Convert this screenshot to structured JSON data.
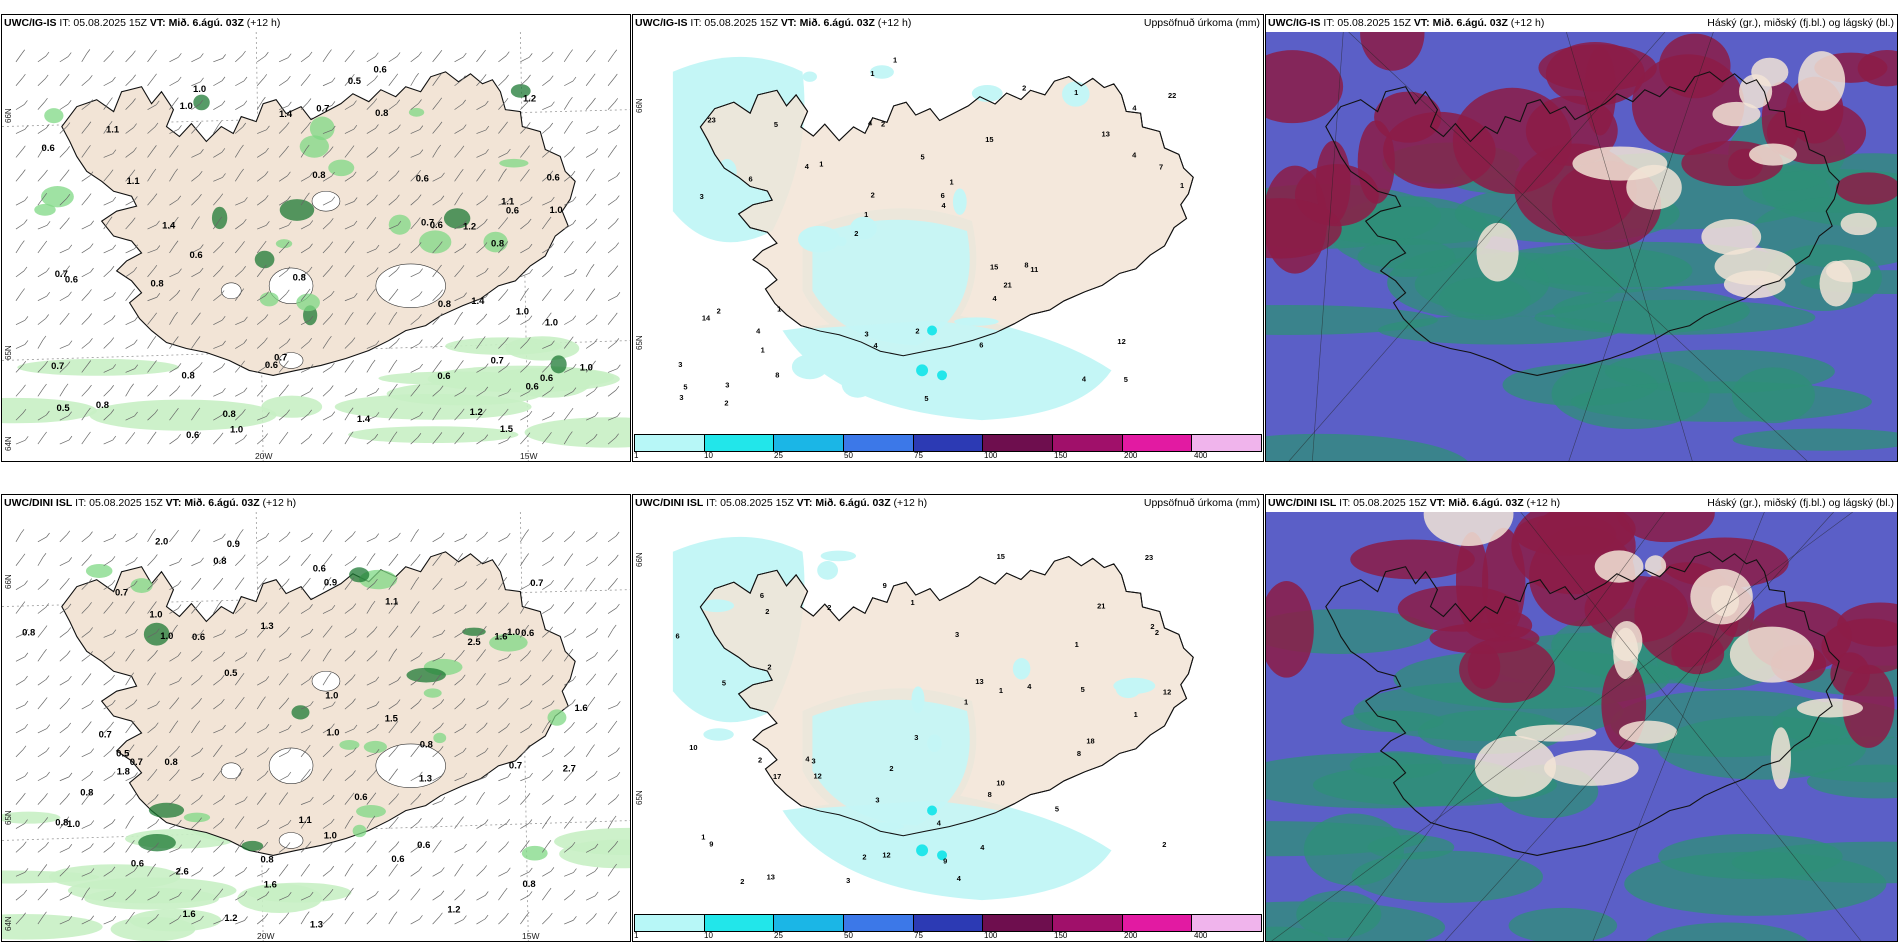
{
  "rows": [
    {
      "model": "UWC/IG-IS",
      "panels": [
        {
          "it": "IT: 05.08.2025 15Z",
          "vt_label": "VT:",
          "vt_value": "Mið. 6.ágú. 03Z",
          "lead": "(+12 h)",
          "right": ""
        },
        {
          "it": "IT: 05.08.2025 15Z",
          "vt_label": "VT:",
          "vt_value": "Mið. 6.ágú. 03Z",
          "lead": "(+12 h)",
          "right": "Uppsöfnuð úrkoma (mm)"
        },
        {
          "it": "IT: 05.08.2025 15Z",
          "vt_label": "VT:",
          "vt_value": "Mið. 6.ágú. 03Z",
          "lead": "(+12 h)",
          "right": "Háský (gr.), miðský (fj.bl.) og lágský (bl.)"
        }
      ],
      "wind_labels": [
        "0.7",
        "0.6",
        "0.6",
        "0.8",
        "0.5",
        "1.0",
        "1.1",
        "0.8",
        "1.2",
        "1.1",
        "1.0",
        "0.6",
        "0.8",
        "1.0",
        "0.7",
        "1.1",
        "0.6",
        "1.0",
        "0.7",
        "0.6",
        "0.7",
        "0.6",
        "1.4",
        "0.7",
        "0.8",
        "0.6",
        "0.5",
        "0.8",
        "0.6",
        "1.0",
        "0.8",
        "0.6",
        "0.6",
        "0.8",
        "1.0",
        "1.2",
        "0.6",
        "1.4",
        "1.5",
        "0.6",
        "1.4",
        "1.2",
        "0.7",
        "1.4",
        "1.0",
        "0.8",
        "0.8",
        "0.6"
      ],
      "precip_labels": [
        "5",
        "3",
        "4",
        "2",
        "15",
        "3",
        "4",
        "5",
        "2",
        "1",
        "3",
        "1",
        "2",
        "1",
        "11",
        "23",
        "1",
        "1",
        "15",
        "4",
        "1",
        "3",
        "2",
        "5",
        "2",
        "1",
        "4",
        "12",
        "8",
        "5",
        "4",
        "6",
        "4",
        "8",
        "7",
        "6",
        "5",
        "4",
        "4",
        "14",
        "13",
        "22",
        "21",
        "6",
        "4",
        "2",
        "3",
        "2",
        "1",
        "1"
      ]
    },
    {
      "model": "UWC/DINI ISL",
      "panels": [
        {
          "it": "IT: 05.08.2025 15Z",
          "vt_label": "VT:",
          "vt_value": "Mið. 6.ágú. 03Z",
          "lead": "(+12 h)",
          "right": ""
        },
        {
          "it": "IT: 05.08.2025 15Z",
          "vt_label": "VT:",
          "vt_value": "Mið. 6.ágú. 03Z",
          "lead": "(+12 h)",
          "right": "Uppsöfnuð úrkoma (mm)"
        },
        {
          "it": "IT: 05.08.2025 15Z",
          "vt_label": "VT:",
          "vt_value": "Mið. 6.ágú. 03Z",
          "lead": "(+12 h)",
          "right": "Háský (gr.), miðský (fj.bl.) og lágský (bl.)"
        }
      ],
      "wind_labels": [
        "2.7",
        "0.6",
        "2.5",
        "1.3",
        "1.0",
        "1.6",
        "1.0",
        "0.8",
        "1.6",
        "1.5",
        "0.8",
        "2.0",
        "1.0",
        "0.7",
        "0.9",
        "0.5",
        "1.6",
        "0.6",
        "1.0",
        "0.8",
        "0.6",
        "1.1",
        "1.6",
        "1.2",
        "1.3",
        "0.8",
        "0.8",
        "1.2",
        "0.8",
        "1.0",
        "0.7",
        "0.7",
        "2.6",
        "1.8",
        "1.1",
        "0.6",
        "0.7",
        "1.3",
        "0.8",
        "1.0",
        "0.6",
        "0.8",
        "1.0",
        "0.6",
        "0.5",
        "0.9",
        "0.6",
        "0.7"
      ],
      "precip_labels": [
        "10",
        "1",
        "9",
        "1",
        "12",
        "8",
        "15",
        "12",
        "13",
        "2",
        "2",
        "3",
        "2",
        "1",
        "2",
        "1",
        "17",
        "8",
        "13",
        "4",
        "2",
        "2",
        "5",
        "3",
        "9",
        "10",
        "4",
        "3",
        "5",
        "4",
        "4",
        "3",
        "4",
        "6",
        "5",
        "9",
        "12",
        "18",
        "6",
        "2",
        "23",
        "21",
        "2",
        "1",
        "2",
        "3",
        "1",
        "2"
      ]
    }
  ],
  "axes": {
    "lat_labels": [
      "66N",
      "65N",
      "64N"
    ],
    "lon_labels": [
      "20W",
      "15W"
    ]
  },
  "colorbar": {
    "ticks": [
      "1",
      "10",
      "25",
      "50",
      "75",
      "100",
      "150",
      "200",
      "400"
    ],
    "colors": [
      "#b7f7f7",
      "#22e6ea",
      "#1bb6e6",
      "#3c78e8",
      "#2c3ab4",
      "#6e0e4e",
      "#a0106a",
      "#e21aa2",
      "#f0b4ec"
    ]
  },
  "colors": {
    "land": "#f2e4d6",
    "sea_bg": "#ffffff",
    "wind_green_light": "#c8f0c4",
    "wind_green_mid": "#7fd884",
    "wind_green_dark": "#1e7a34",
    "precip_light": "#c4f6f6",
    "cloud_high": "#8c1c46",
    "cloud_mid": "#2f8f78",
    "cloud_low": "#5b5fc7"
  }
}
